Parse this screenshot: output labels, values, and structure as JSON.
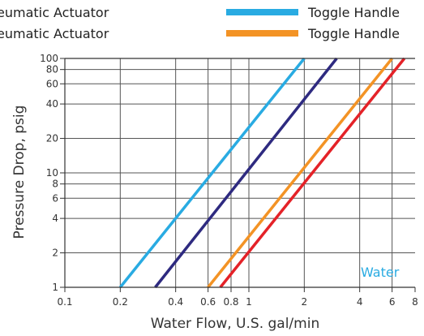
{
  "chart_data": {
    "type": "line",
    "xlabel": "Water Flow, U.S. gal/min",
    "ylabel": "Pressure Drop, psig",
    "xscale": "log",
    "yscale": "log",
    "xlim": [
      0.1,
      8
    ],
    "ylim": [
      1,
      100
    ],
    "x_ticks": [
      0.1,
      0.2,
      0.4,
      0.6,
      0.8,
      1,
      2,
      4,
      6,
      8
    ],
    "x_tick_labels": [
      "0.1",
      "0.2",
      "0.4",
      "0.6",
      "0.8",
      "1",
      "2",
      "4",
      "6",
      "8"
    ],
    "y_ticks": [
      1,
      2,
      4,
      6,
      8,
      10,
      20,
      40,
      60,
      80,
      100
    ],
    "y_tick_labels": [
      "1",
      "2",
      "4",
      "6",
      "8",
      "10",
      "20",
      "40",
      "60",
      "80",
      "100"
    ],
    "grid": true,
    "annotation": {
      "text": "Water",
      "color": "#29abe2"
    },
    "legend": {
      "placement": "top",
      "entries": [
        {
          "label": "eumatic Actuator",
          "side": "left"
        },
        {
          "label": "eumatic Actuator",
          "side": "left"
        },
        {
          "label": "Toggle Handle",
          "color": "#29abe2",
          "side": "right"
        },
        {
          "label": "Toggle Handle",
          "color": "#f39325",
          "side": "right"
        }
      ]
    },
    "series": [
      {
        "color": "#29abe2",
        "x": [
          0.2,
          2.0
        ],
        "y": [
          1,
          100
        ]
      },
      {
        "color": "#2e2a80",
        "x": [
          0.31,
          3.0
        ],
        "y": [
          1,
          100
        ]
      },
      {
        "color": "#f39325",
        "x": [
          0.6,
          6.0
        ],
        "y": [
          1,
          100
        ]
      },
      {
        "color": "#e42228",
        "x": [
          0.7,
          7.0
        ],
        "y": [
          1,
          100
        ]
      }
    ]
  }
}
